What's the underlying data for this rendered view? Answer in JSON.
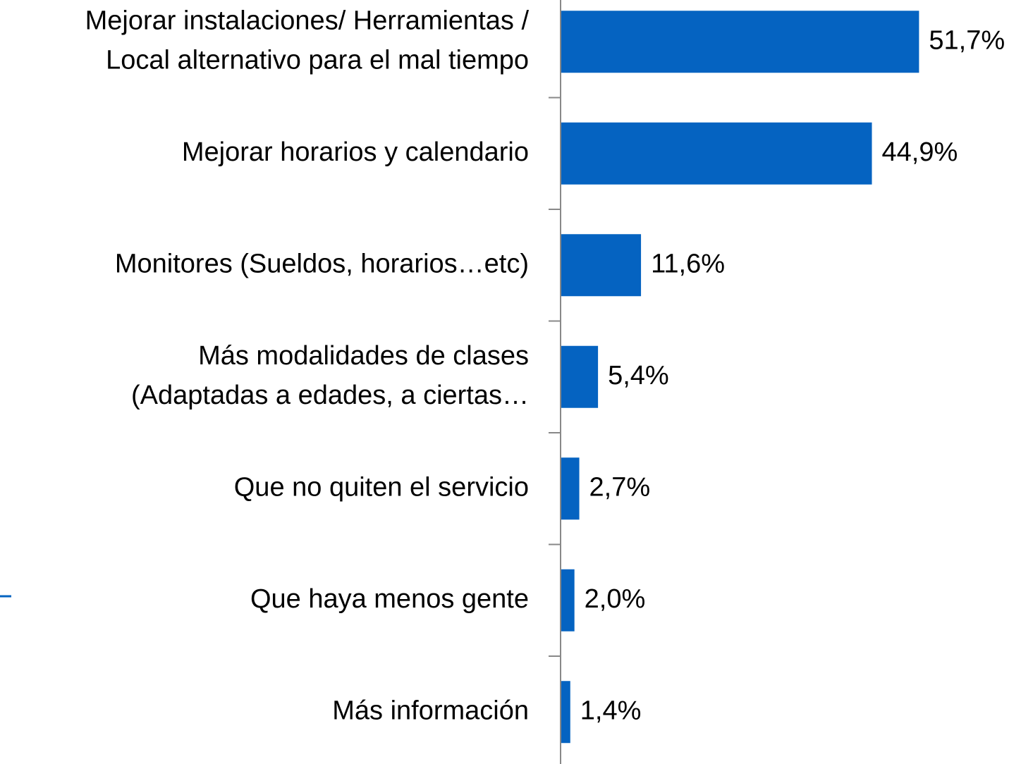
{
  "chart_data": {
    "type": "bar",
    "orientation": "horizontal",
    "categories": [
      [
        "Mejorar instalaciones/ Herramientas /",
        "Local alternativo para el mal tiempo"
      ],
      "Mejorar horarios y calendario",
      "Monitores (Sueldos, horarios…etc)",
      [
        "Más modalidades de clases",
        "(Adaptadas a edades, a ciertas…"
      ],
      "Que no quiten el servicio",
      "Que haya menos gente",
      "Más información"
    ],
    "values": [
      51.7,
      44.9,
      11.6,
      5.4,
      2.7,
      2.0,
      1.4
    ],
    "value_labels": [
      "51,7%",
      "44,9%",
      "11,6%",
      "5,4%",
      "2,7%",
      "2,0%",
      "1,4%"
    ],
    "color": "#0563c1",
    "xlim": [
      0,
      60
    ]
  }
}
